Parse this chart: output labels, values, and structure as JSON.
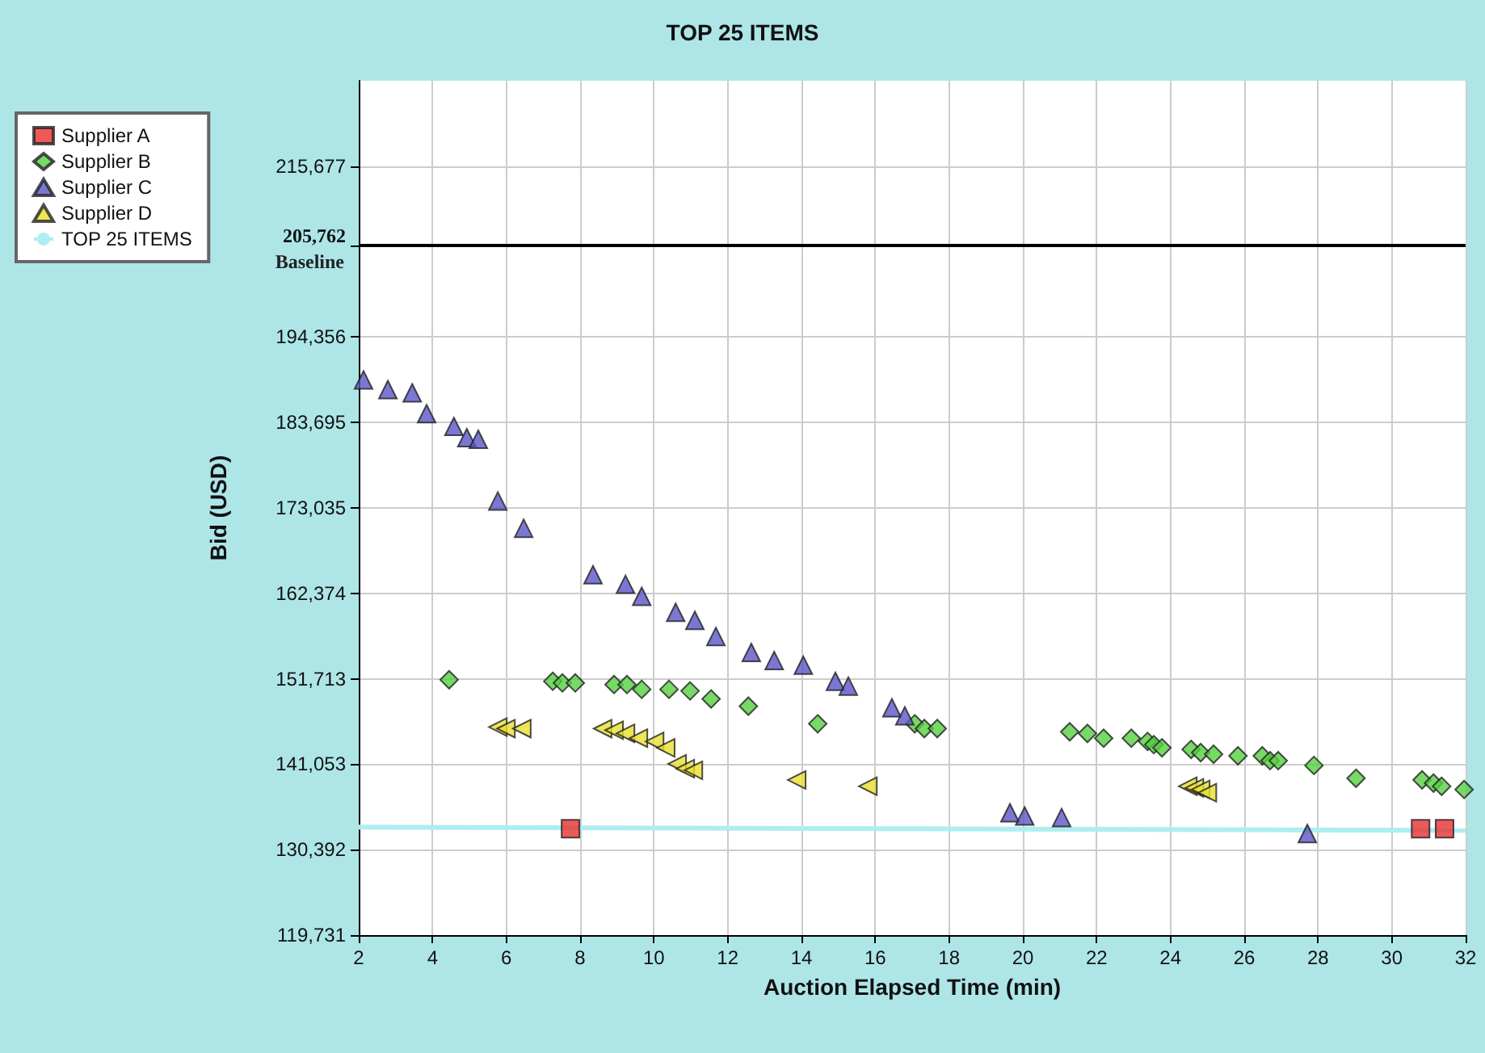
{
  "chart_data": {
    "type": "scatter",
    "title": "TOP 25 ITEMS",
    "xlabel": "Auction Elapsed Time (min)",
    "ylabel": "Bid (USD)",
    "xlim": [
      2,
      32
    ],
    "xticks": [
      2,
      4,
      6,
      8,
      10,
      12,
      14,
      16,
      18,
      20,
      22,
      24,
      26,
      28,
      30,
      32
    ],
    "ylim": [
      119731,
      226338
    ],
    "yticks": [
      {
        "value": 119731,
        "label": "119,731"
      },
      {
        "value": 130392,
        "label": "130,392"
      },
      {
        "value": 141053,
        "label": "141,053"
      },
      {
        "value": 151713,
        "label": "151,713"
      },
      {
        "value": 162374,
        "label": "162,374"
      },
      {
        "value": 173035,
        "label": "173,035"
      },
      {
        "value": 183695,
        "label": "183,695"
      },
      {
        "value": 194356,
        "label": "194,356"
      },
      {
        "value": 205762,
        "label": "205,762"
      },
      {
        "value": 215677,
        "label": "215,677"
      }
    ],
    "grid": true,
    "legend": "top left",
    "ref_lines": [
      {
        "axis": "y",
        "value": 205762,
        "label": "Baseline",
        "color": "#000000"
      }
    ],
    "series": [
      {
        "name": "Supplier A",
        "color": "#e83030",
        "marker": "square",
        "x": [
          7.74,
          30.78,
          31.43
        ],
        "values": [
          133000,
          133000,
          133000
        ]
      },
      {
        "name": "Supplier B",
        "color": "#55d040",
        "marker": "diamond",
        "x": [
          4.45,
          7.26,
          7.52,
          7.87,
          8.92,
          9.27,
          9.67,
          10.41,
          10.98,
          11.55,
          12.56,
          14.44,
          17.07,
          17.33,
          17.68,
          21.27,
          21.75,
          22.19,
          22.94,
          23.38,
          23.55,
          23.77,
          24.56,
          24.82,
          25.17,
          25.83,
          26.49,
          26.7,
          26.92,
          27.89,
          29.03,
          30.82,
          31.13,
          31.35,
          31.96
        ],
        "values": [
          151600,
          151400,
          151200,
          151200,
          151000,
          151000,
          150400,
          150400,
          150200,
          149200,
          148300,
          146100,
          146100,
          145500,
          145500,
          145100,
          144900,
          144300,
          144300,
          143900,
          143500,
          143100,
          142900,
          142500,
          142300,
          142100,
          142100,
          141500,
          141500,
          140900,
          139300,
          139100,
          138700,
          138300,
          137900
        ]
      },
      {
        "name": "Supplier C",
        "color": "#5a55c8",
        "marker": "triangle",
        "x": [
          2.13,
          2.79,
          3.45,
          3.84,
          4.58,
          4.93,
          5.24,
          5.77,
          6.47,
          8.35,
          9.23,
          9.67,
          10.59,
          11.11,
          11.68,
          12.64,
          13.26,
          14.05,
          14.92,
          15.27,
          16.45,
          16.8,
          19.65,
          20.05,
          21.05,
          27.71
        ],
        "values": [
          189000,
          187800,
          187400,
          184800,
          183200,
          181800,
          181600,
          173900,
          170500,
          164700,
          163500,
          162000,
          160000,
          159000,
          157000,
          155000,
          154000,
          153400,
          151400,
          150800,
          148100,
          147100,
          135000,
          134600,
          134400,
          132400
        ]
      },
      {
        "name": "Supplier D",
        "color": "#e8e030",
        "marker": "triangle-left",
        "x": [
          5.77,
          5.99,
          6.42,
          8.61,
          8.92,
          9.23,
          9.58,
          10.02,
          10.32,
          10.63,
          10.85,
          11.07,
          13.87,
          15.8,
          24.47,
          24.65,
          24.82,
          25.0
        ],
        "values": [
          145700,
          145500,
          145500,
          145500,
          145300,
          144900,
          144300,
          143900,
          143100,
          141100,
          140500,
          140300,
          139100,
          138300,
          138300,
          138100,
          137900,
          137500
        ]
      },
      {
        "name": "TOP 25 ITEMS",
        "type": "line",
        "color": "#aeeef0",
        "x": [
          2,
          32
        ],
        "values": [
          133200,
          132800
        ]
      }
    ]
  }
}
